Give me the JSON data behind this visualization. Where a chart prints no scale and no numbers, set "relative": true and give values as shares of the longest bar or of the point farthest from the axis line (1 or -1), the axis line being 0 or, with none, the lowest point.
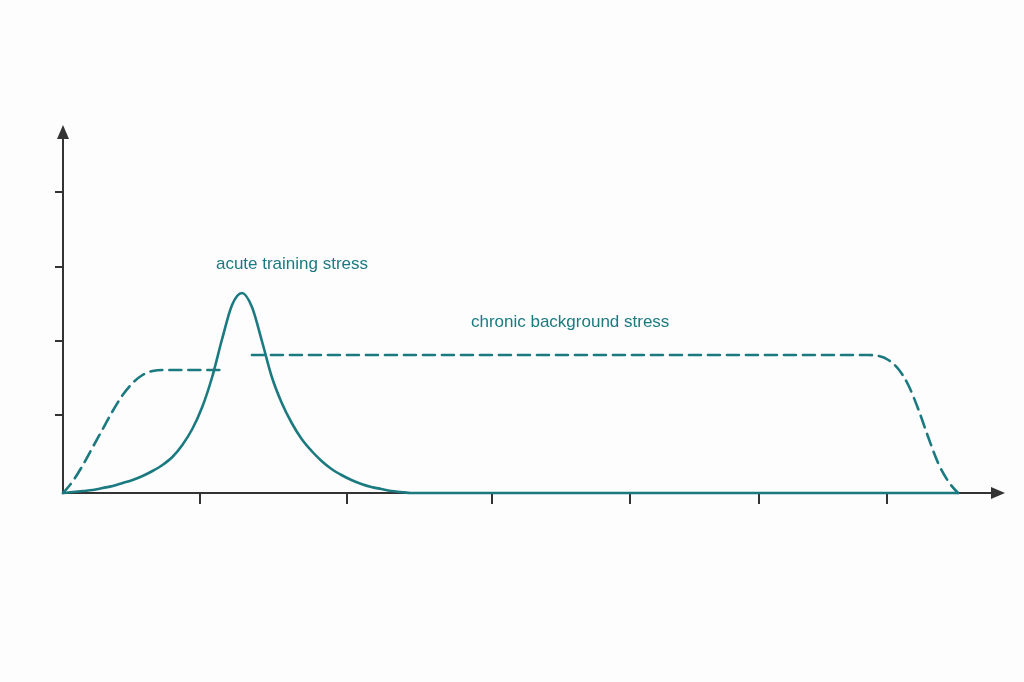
{
  "chart_data": {
    "type": "line",
    "relative": true,
    "categories": [
      null,
      null,
      null,
      null,
      null,
      null,
      null,
      null,
      null,
      null,
      null,
      null,
      null,
      null,
      null,
      null,
      null,
      null,
      null,
      null,
      null,
      null,
      null,
      null,
      null,
      null,
      null,
      null,
      null,
      null,
      null,
      null,
      null,
      null,
      null,
      null,
      null,
      null,
      null,
      null,
      null,
      null,
      null,
      null,
      null,
      null,
      null,
      null,
      null,
      null,
      null,
      null,
      null,
      null,
      null,
      null,
      null,
      null,
      null,
      null,
      null,
      null,
      null,
      null,
      null,
      null,
      null,
      null,
      null,
      null,
      null,
      null,
      null,
      null,
      null,
      null,
      null,
      null,
      null,
      null,
      null,
      null,
      null,
      null,
      null,
      null,
      null,
      null,
      null,
      null,
      null
    ],
    "series": [
      {
        "name": "acute training stress",
        "color": "#1b7a80",
        "line_style": "solid",
        "values": [
          0,
          0.005,
          0.01,
          0.015,
          0.025,
          0.035,
          0.05,
          0.065,
          0.085,
          0.11,
          0.14,
          0.18,
          0.24,
          0.32,
          0.43,
          0.58,
          0.77,
          0.94,
          1.0,
          0.93,
          0.76,
          0.58,
          0.45,
          0.35,
          0.27,
          0.21,
          0.16,
          0.12,
          0.09,
          0.065,
          0.045,
          0.03,
          0.02,
          0.01,
          0.005,
          0,
          0,
          0,
          0,
          0,
          0,
          0,
          0,
          0,
          0,
          0,
          0,
          0,
          0,
          0,
          0,
          0,
          0,
          0,
          0,
          0,
          0,
          0,
          0,
          0,
          0,
          0,
          0,
          0,
          0,
          0,
          0,
          0,
          0,
          0,
          0,
          0,
          0,
          0,
          0,
          0,
          0,
          0,
          0,
          0,
          0,
          0,
          0,
          0,
          0,
          0,
          0,
          0,
          0,
          0,
          0
        ]
      },
      {
        "name": "chronic background stress",
        "color": "#1b7a80",
        "line_style": "dashed",
        "values": [
          0,
          0.06,
          0.14,
          0.23,
          0.32,
          0.41,
          0.49,
          0.55,
          0.59,
          0.61,
          0.615,
          0.615,
          0.615,
          0.615,
          0.615,
          0.615,
          0.615,
          null,
          null,
          0.69,
          0.69,
          0.69,
          0.69,
          0.69,
          0.69,
          0.69,
          0.69,
          0.69,
          0.69,
          0.69,
          0.69,
          0.69,
          0.69,
          0.69,
          0.69,
          0.69,
          0.69,
          0.69,
          0.69,
          0.69,
          0.69,
          0.69,
          0.69,
          0.69,
          0.69,
          0.69,
          0.69,
          0.69,
          0.69,
          0.69,
          0.69,
          0.69,
          0.69,
          0.69,
          0.69,
          0.69,
          0.69,
          0.69,
          0.69,
          0.69,
          0.69,
          0.69,
          0.69,
          0.69,
          0.69,
          0.69,
          0.69,
          0.69,
          0.69,
          0.69,
          0.69,
          0.69,
          0.69,
          0.69,
          0.69,
          0.69,
          0.69,
          0.69,
          0.69,
          0.69,
          0.69,
          0.69,
          0.685,
          0.665,
          0.62,
          0.54,
          0.42,
          0.28,
          0.15,
          0.06,
          0
        ]
      }
    ]
  }
}
